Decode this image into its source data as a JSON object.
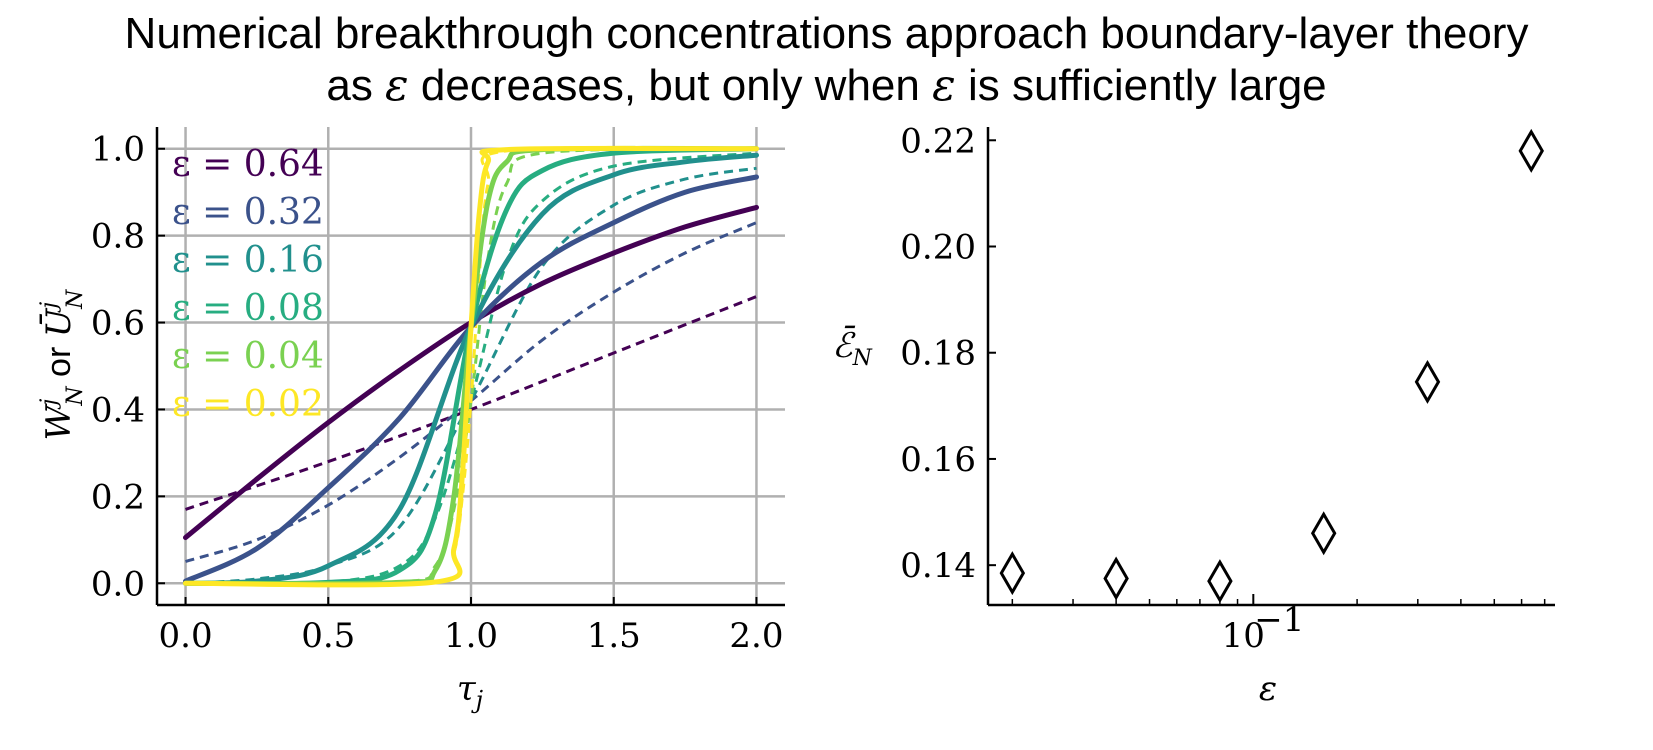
{
  "title": {
    "line1": "Numerical breakthrough concentrations approach boundary-layer theory",
    "line2_a": "as ",
    "line2_sym1": "ε",
    "line2_b": " decreases, but only when ",
    "line2_sym2": "ε",
    "line2_c": " is sufficiently large"
  },
  "chart_data": [
    {
      "type": "line",
      "xlabel": "τ_j",
      "ylabel": "W_N^j or Ū_N^j",
      "xlim": [
        -0.1,
        2.1
      ],
      "ylim": [
        -0.05,
        1.05
      ],
      "xticks": [
        0.0,
        0.5,
        1.0,
        1.5,
        2.0
      ],
      "xtick_labels": [
        "0.0",
        "0.5",
        "1.0",
        "1.5",
        "2.0"
      ],
      "yticks": [
        0.0,
        0.2,
        0.4,
        0.6,
        0.8,
        1.0
      ],
      "ytick_labels": [
        "0.0",
        "0.2",
        "0.4",
        "0.6",
        "0.8",
        "1.0"
      ],
      "grid": true,
      "legend": "upper-left",
      "line_styles": {
        "solid": "W_N^j",
        "dashed": "Ū_N^j"
      },
      "series": [
        {
          "name": "ε = 0.64",
          "eps": 0.64,
          "color": "#440154",
          "solid": {
            "x": [
              0,
              0.25,
              0.5,
              0.75,
              1.0,
              1.25,
              1.5,
              1.75,
              2.0
            ],
            "y": [
              0.105,
              0.24,
              0.37,
              0.49,
              0.6,
              0.69,
              0.76,
              0.82,
              0.865
            ]
          },
          "dashed": {
            "x": [
              0,
              0.5,
              1.0,
              1.5,
              2.0
            ],
            "y": [
              0.17,
              0.28,
              0.4,
              0.53,
              0.66
            ]
          }
        },
        {
          "name": "ε = 0.32",
          "eps": 0.32,
          "color": "#3b528b",
          "solid": {
            "x": [
              0,
              0.25,
              0.5,
              0.75,
              1.0,
              1.25,
              1.5,
              1.75,
              2.0
            ],
            "y": [
              0.005,
              0.08,
              0.22,
              0.38,
              0.59,
              0.74,
              0.83,
              0.9,
              0.935
            ]
          },
          "dashed": {
            "x": [
              0,
              0.25,
              0.5,
              0.75,
              1.0,
              1.25,
              1.5,
              1.75,
              2.0
            ],
            "y": [
              0.05,
              0.1,
              0.18,
              0.29,
              0.42,
              0.56,
              0.67,
              0.76,
              0.83
            ]
          }
        },
        {
          "name": "ε = 0.16",
          "eps": 0.16,
          "color": "#21908d",
          "solid": {
            "x": [
              0,
              0.25,
              0.5,
              0.75,
              1.0,
              1.25,
              1.5,
              1.75,
              2.0
            ],
            "y": [
              0.0,
              0.005,
              0.04,
              0.17,
              0.59,
              0.85,
              0.94,
              0.97,
              0.985
            ]
          },
          "dashed": {
            "x": [
              0,
              0.25,
              0.5,
              0.75,
              1.0,
              1.25,
              1.5,
              1.75,
              2.0
            ],
            "y": [
              0.0,
              0.01,
              0.04,
              0.13,
              0.42,
              0.73,
              0.87,
              0.93,
              0.955
            ]
          }
        },
        {
          "name": "ε = 0.08",
          "eps": 0.08,
          "color": "#27ad81",
          "solid": {
            "x": [
              0,
              0.5,
              0.75,
              0.875,
              1.0,
              1.125,
              1.25,
              1.5,
              2.0
            ],
            "y": [
              0.0,
              0.002,
              0.03,
              0.16,
              0.59,
              0.86,
              0.95,
              0.99,
              1.0
            ]
          },
          "dashed": {
            "x": [
              0,
              0.5,
              0.75,
              0.875,
              1.0,
              1.125,
              1.25,
              1.5,
              2.0
            ],
            "y": [
              0.0,
              0.003,
              0.04,
              0.15,
              0.42,
              0.74,
              0.88,
              0.96,
              0.99
            ]
          }
        },
        {
          "name": "ε = 0.04",
          "eps": 0.04,
          "color": "#7ad151",
          "solid": {
            "x": [
              0,
              0.75,
              0.875,
              0.94,
              1.0,
              1.06,
              1.125,
              1.25,
              2.0
            ],
            "y": [
              0.0,
              0.002,
              0.03,
              0.2,
              0.59,
              0.88,
              0.97,
              0.998,
              1.0
            ]
          },
          "dashed": {
            "x": [
              0,
              0.75,
              0.875,
              0.94,
              1.0,
              1.06,
              1.125,
              1.25,
              2.0
            ],
            "y": [
              0.0,
              0.003,
              0.04,
              0.17,
              0.42,
              0.75,
              0.92,
              0.99,
              1.0
            ]
          }
        },
        {
          "name": "ε = 0.02",
          "eps": 0.02,
          "color": "#fde725",
          "solid": {
            "x": [
              0,
              0.875,
              0.94,
              0.97,
              1.0,
              1.03,
              1.06,
              1.125,
              2.0
            ],
            "y": [
              0.0,
              0.003,
              0.08,
              0.25,
              0.59,
              0.86,
              0.97,
              0.998,
              1.0
            ]
          },
          "dashed": {
            "x": [
              0,
              0.875,
              0.94,
              0.97,
              1.0,
              1.03,
              1.06,
              1.125,
              2.0
            ],
            "y": [
              0.0,
              0.003,
              0.07,
              0.2,
              0.42,
              0.72,
              0.92,
              0.995,
              1.0
            ]
          }
        }
      ]
    },
    {
      "type": "scatter",
      "xlabel": "ε",
      "ylabel": "ℰ̄_N",
      "xscale": "log",
      "xlim": [
        0.017,
        0.75
      ],
      "ylim": [
        0.1325,
        0.2225
      ],
      "xticks": [
        0.1
      ],
      "xtick_labels": [
        "10"
      ],
      "xtick_exponent": "−1",
      "yticks": [
        0.14,
        0.16,
        0.18,
        0.2,
        0.22
      ],
      "ytick_labels": [
        "0.14",
        "0.16",
        "0.18",
        "0.20",
        "0.22"
      ],
      "grid": false,
      "marker": "diamond",
      "points": [
        {
          "x": 0.02,
          "y": 0.1385
        },
        {
          "x": 0.04,
          "y": 0.1375
        },
        {
          "x": 0.08,
          "y": 0.137
        },
        {
          "x": 0.16,
          "y": 0.146
        },
        {
          "x": 0.32,
          "y": 0.1745
        },
        {
          "x": 0.64,
          "y": 0.218
        }
      ]
    }
  ]
}
